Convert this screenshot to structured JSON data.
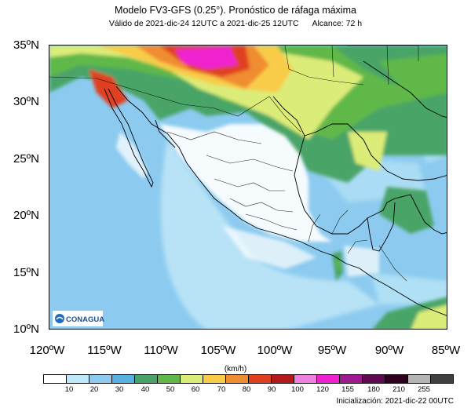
{
  "title": "Modelo FV3-GFS (0.25°). Pronóstico de ráfaga máxima",
  "subtitle": {
    "valid": "Válido de 2021-dic-24 12UTC a 2021-dic-25 12UTC",
    "range": "Alcance: 72 h"
  },
  "axes": {
    "y_labels": [
      "35ºN",
      "30ºN",
      "25ºN",
      "20ºN",
      "15ºN",
      "10ºN"
    ],
    "x_labels": [
      "120ºW",
      "115ºW",
      "110ºW",
      "105ºW",
      "100ºW",
      "95ºW",
      "90ºW",
      "85ºW"
    ]
  },
  "colorbar": {
    "unit": "(km/h)",
    "labels": [
      "10",
      "20",
      "30",
      "40",
      "50",
      "60",
      "70",
      "80",
      "90",
      "100",
      "120",
      "155",
      "180",
      "210",
      "255"
    ],
    "colors": [
      "#ffffff",
      "#bfe8f8",
      "#8ccbef",
      "#58b0e0",
      "#48a468",
      "#60b848",
      "#dcec78",
      "#f8cc48",
      "#f08c30",
      "#e04020",
      "#b41818",
      "#f080e0",
      "#f020d0",
      "#a01890",
      "#600850",
      "#300020",
      "#b4b4b4",
      "#404040"
    ]
  },
  "logo": {
    "text": "CONAGUA"
  },
  "footer": "Inicialización: 2021-dic-22 00UTC",
  "map": {
    "lon_range": [
      -120,
      -85
    ],
    "lat_range": [
      10,
      35
    ],
    "background": "#8ccbef"
  }
}
